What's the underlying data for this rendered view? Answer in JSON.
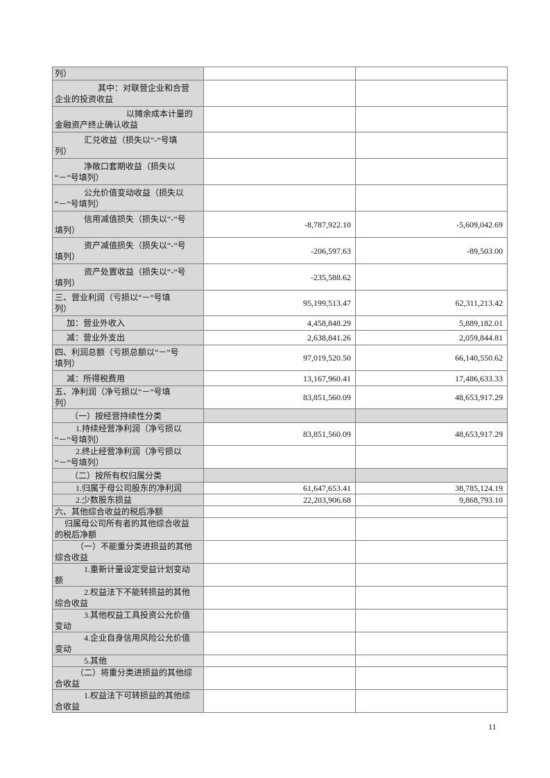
{
  "table": {
    "rows": [
      {
        "label": "列）",
        "current": "",
        "prior": ""
      },
      {
        "label": "其中：对联营企业和合营\n企业的投资收益",
        "current": "",
        "prior": ""
      },
      {
        "label": "以摊余成本计量的\n金融资产终止确认收益",
        "current": "",
        "prior": ""
      },
      {
        "label": "汇兑收益（损失以“-”号填\n列）",
        "current": "",
        "prior": ""
      },
      {
        "label": "净敞口套期收益（损失以\n“－”号填列）",
        "current": "",
        "prior": ""
      },
      {
        "label": "公允价值变动收益（损失以\n“－”号填列）",
        "current": "",
        "prior": ""
      },
      {
        "label": "信用减值损失（损失以“-”号\n填列）",
        "current": "-8,787,922.10",
        "prior": "-5,609,042.69"
      },
      {
        "label": "资产减值损失（损失以“-”号\n填列）",
        "current": "-206,597.63",
        "prior": "-89,503.00"
      },
      {
        "label": "资产处置收益（损失以“-”号\n填列）",
        "current": "-235,588.62",
        "prior": ""
      },
      {
        "label": "三、营业利润（亏损以“－”号填\n列）",
        "current": "95,199,513.47",
        "prior": "62,311,213.42"
      },
      {
        "label": "加：营业外收入",
        "current": "4,458,848.29",
        "prior": "5,889,182.01"
      },
      {
        "label": "减：营业外支出",
        "current": "2,638,841.26",
        "prior": "2,059,844.81"
      },
      {
        "label": "四、利润总额（亏损总额以“－”号\n填列）",
        "current": "97,019,520.50",
        "prior": "66,140,550.62"
      },
      {
        "label": "减：所得税费用",
        "current": "13,167,960.41",
        "prior": "17,486,633.33"
      },
      {
        "label": "五、净利润（净亏损以“－”号填\n列）",
        "current": "83,851,560.09",
        "prior": "48,653,917.29"
      },
      {
        "label": "（一）按经营持续性分类",
        "current": "",
        "prior": ""
      },
      {
        "label": "1.持续经营净利润（净亏损以\n“－”号填列）",
        "current": "83,851,560.09",
        "prior": "48,653,917.29"
      },
      {
        "label": "2.终止经营净利润（净亏损以\n“－”号填列）",
        "current": "",
        "prior": ""
      },
      {
        "label": "（二）按所有权归属分类",
        "current": "",
        "prior": ""
      },
      {
        "label": "1.归属于母公司股东的净利润",
        "current": "61,647,653.41",
        "prior": "38,785,124.19"
      },
      {
        "label": "2.少数股东损益",
        "current": "22,203,906.68",
        "prior": "9,868,793.10"
      },
      {
        "label": "六、其他综合收益的税后净额",
        "current": "",
        "prior": ""
      },
      {
        "label": "归属母公司所有者的其他综合收益\n的税后净额",
        "current": "",
        "prior": ""
      },
      {
        "label": "（一）不能重分类进损益的其他\n综合收益",
        "current": "",
        "prior": ""
      },
      {
        "label": "1.重新计量设定受益计划变动\n额",
        "current": "",
        "prior": ""
      },
      {
        "label": "2.权益法下不能转损益的其他\n综合收益",
        "current": "",
        "prior": ""
      },
      {
        "label": "3.其他权益工具投资公允价值\n变动",
        "current": "",
        "prior": ""
      },
      {
        "label": "4.企业自身信用风险公允价值\n变动",
        "current": "",
        "prior": ""
      },
      {
        "label": "5.其他",
        "current": "",
        "prior": ""
      },
      {
        "label": "（二）将重分类进损益的其他综\n合收益",
        "current": "",
        "prior": ""
      },
      {
        "label": "1.权益法下可转损益的其他综\n合收益",
        "current": "",
        "prior": ""
      }
    ]
  },
  "footer": {
    "page_number": "11"
  }
}
